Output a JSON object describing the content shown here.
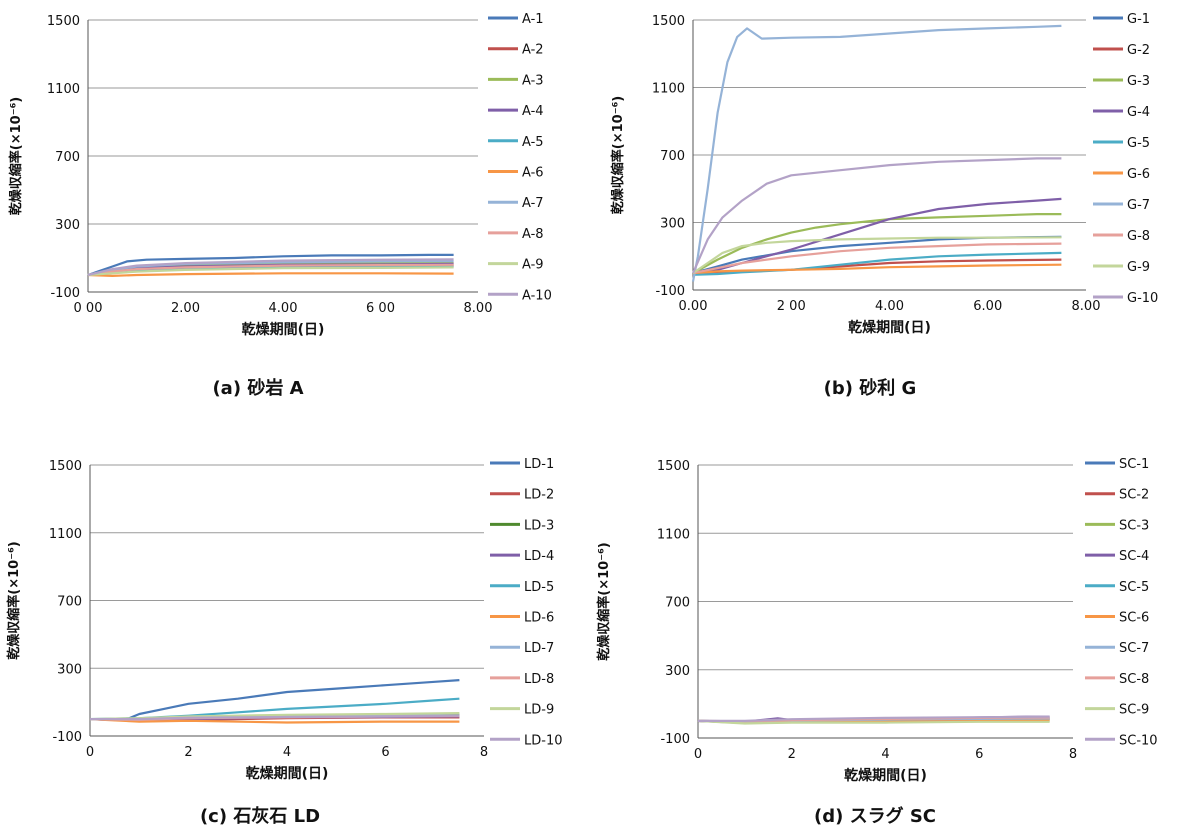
{
  "chart_data": [
    {
      "type": "line",
      "caption": "(a) 砂岩 A",
      "xlabel": "乾燥期間(日)",
      "ylabel": "乾燥収縮率(×10⁻⁶)",
      "xlim": [
        0,
        8
      ],
      "ylim": [
        -100,
        1500
      ],
      "xticks": [
        0,
        2,
        4,
        6,
        8
      ],
      "xtick_labels": [
        "0 00",
        "2.00",
        "4.00",
        "6 00",
        "8.00"
      ],
      "yticks": [
        -100,
        300,
        700,
        1100,
        1500
      ],
      "grid": "horizontal",
      "legend": "right",
      "series": [
        {
          "name": "A-1",
          "color": "#4a7ab8",
          "x": [
            0,
            0.2,
            0.5,
            0.8,
            1.2,
            2,
            3,
            4,
            5,
            6,
            7,
            7.5
          ],
          "y": [
            0,
            20,
            50,
            80,
            90,
            95,
            100,
            110,
            115,
            115,
            118,
            118
          ]
        },
        {
          "name": "A-2",
          "color": "#c0504d",
          "x": [
            0,
            0.5,
            1,
            2,
            4,
            6,
            7.5
          ],
          "y": [
            0,
            20,
            35,
            45,
            50,
            55,
            55
          ]
        },
        {
          "name": "A-3",
          "color": "#9bbb59",
          "x": [
            0,
            0.5,
            1,
            2,
            4,
            6,
            7.5
          ],
          "y": [
            0,
            30,
            45,
            55,
            65,
            70,
            72
          ]
        },
        {
          "name": "A-4",
          "color": "#7f5fa8",
          "x": [
            0,
            0.5,
            1,
            2,
            4,
            6,
            7.5
          ],
          "y": [
            0,
            25,
            40,
            50,
            60,
            62,
            65
          ]
        },
        {
          "name": "A-5",
          "color": "#4bacc6",
          "x": [
            0,
            0.5,
            1,
            2,
            4,
            6,
            7.5
          ],
          "y": [
            0,
            15,
            25,
            35,
            45,
            48,
            50
          ]
        },
        {
          "name": "A-6",
          "color": "#f79646",
          "x": [
            0,
            0.5,
            1,
            2,
            4,
            6,
            7.5
          ],
          "y": [
            0,
            -5,
            0,
            5,
            10,
            10,
            8
          ]
        },
        {
          "name": "A-7",
          "color": "#95b3d7",
          "x": [
            0,
            0.5,
            1,
            2,
            4,
            6,
            7.5
          ],
          "y": [
            0,
            30,
            50,
            65,
            75,
            80,
            82
          ]
        },
        {
          "name": "A-8",
          "color": "#e6a09b",
          "x": [
            0,
            0.5,
            1,
            2,
            4,
            6,
            7.5
          ],
          "y": [
            0,
            20,
            35,
            45,
            55,
            58,
            60
          ]
        },
        {
          "name": "A-9",
          "color": "#c3d69b",
          "x": [
            0,
            0.5,
            1,
            2,
            4,
            6,
            7.5
          ],
          "y": [
            0,
            10,
            20,
            30,
            40,
            42,
            45
          ]
        },
        {
          "name": "A-10",
          "color": "#b3a2c7",
          "x": [
            0,
            0.5,
            1,
            2,
            4,
            6,
            7.5
          ],
          "y": [
            0,
            35,
            55,
            70,
            85,
            90,
            92
          ]
        }
      ]
    },
    {
      "type": "line",
      "caption": "(b) 砂利 G",
      "xlabel": "乾燥期間(日)",
      "ylabel": "乾燥収縮率(×10⁻⁶)",
      "xlim": [
        0,
        8
      ],
      "ylim": [
        -100,
        1500
      ],
      "xticks": [
        0,
        2,
        4,
        6,
        8
      ],
      "xtick_labels": [
        "0.00",
        "2 00",
        "4.00",
        "6.00",
        "8.00"
      ],
      "yticks": [
        -100,
        300,
        700,
        1100,
        1500
      ],
      "grid": "horizontal",
      "legend": "right",
      "series": [
        {
          "name": "G-1",
          "color": "#4a7ab8",
          "x": [
            0,
            0.5,
            1,
            2,
            3,
            4,
            5,
            6,
            7.5
          ],
          "y": [
            0,
            40,
            80,
            130,
            160,
            180,
            200,
            210,
            215
          ]
        },
        {
          "name": "G-2",
          "color": "#c0504d",
          "x": [
            0,
            0.5,
            1,
            2,
            3,
            4,
            5,
            6,
            7.5
          ],
          "y": [
            0,
            5,
            10,
            20,
            40,
            60,
            70,
            75,
            80
          ]
        },
        {
          "name": "G-3",
          "color": "#9bbb59",
          "x": [
            0,
            0.5,
            1,
            1.5,
            2,
            2.5,
            3,
            4,
            5,
            6,
            7,
            7.5
          ],
          "y": [
            0,
            80,
            150,
            200,
            240,
            270,
            290,
            320,
            330,
            340,
            350,
            350
          ]
        },
        {
          "name": "G-4",
          "color": "#7f5fa8",
          "x": [
            0,
            0.5,
            1,
            2,
            3,
            4,
            5,
            6,
            7,
            7.5
          ],
          "y": [
            0,
            20,
            60,
            140,
            230,
            320,
            380,
            410,
            430,
            440
          ]
        },
        {
          "name": "G-5",
          "color": "#4bacc6",
          "x": [
            0,
            0.5,
            1,
            2,
            3,
            4,
            5,
            6,
            7.5
          ],
          "y": [
            -10,
            -5,
            5,
            20,
            50,
            80,
            100,
            110,
            120
          ]
        },
        {
          "name": "G-6",
          "color": "#f79646",
          "x": [
            0,
            0.5,
            1,
            2,
            3,
            4,
            5,
            6,
            7.5
          ],
          "y": [
            0,
            10,
            15,
            20,
            25,
            35,
            40,
            45,
            50
          ]
        },
        {
          "name": "G-7",
          "color": "#95b3d7",
          "x": [
            0,
            0.1,
            0.3,
            0.5,
            0.7,
            0.9,
            1.1,
            1.4,
            2,
            3,
            4,
            5,
            6,
            7,
            7.5
          ],
          "y": [
            -50,
            100,
            500,
            950,
            1250,
            1400,
            1450,
            1390,
            1395,
            1400,
            1420,
            1440,
            1450,
            1460,
            1465
          ]
        },
        {
          "name": "G-8",
          "color": "#e6a09b",
          "x": [
            0,
            0.5,
            1,
            2,
            3,
            4,
            5,
            6,
            7.5
          ],
          "y": [
            0,
            30,
            60,
            100,
            130,
            150,
            160,
            170,
            175
          ]
        },
        {
          "name": "G-9",
          "color": "#c3d69b",
          "x": [
            0,
            0.3,
            0.6,
            1,
            1.5,
            2,
            3,
            4,
            5,
            6,
            7.5
          ],
          "y": [
            0,
            60,
            120,
            160,
            180,
            190,
            200,
            205,
            210,
            210,
            212
          ]
        },
        {
          "name": "G-10",
          "color": "#b3a2c7",
          "x": [
            0,
            0.3,
            0.6,
            1,
            1.5,
            2,
            3,
            4,
            5,
            6,
            7,
            7.5
          ],
          "y": [
            0,
            200,
            330,
            430,
            530,
            580,
            610,
            640,
            660,
            670,
            680,
            680
          ]
        }
      ]
    },
    {
      "type": "line",
      "caption": "(c) 石灰石 LD",
      "xlabel": "乾燥期間(日)",
      "ylabel": "乾燥収縮率(×10⁻⁶)",
      "xlim": [
        0,
        8
      ],
      "ylim": [
        -100,
        1500
      ],
      "xticks": [
        0,
        2,
        4,
        6,
        8
      ],
      "xtick_labels": [
        "0",
        "2",
        "4",
        "6",
        "8"
      ],
      "yticks": [
        -100,
        300,
        700,
        1100,
        1500
      ],
      "grid": "horizontal",
      "legend": "right",
      "series": [
        {
          "name": "LD-1",
          "color": "#4a7ab8",
          "x": [
            0,
            0.5,
            0.8,
            1,
            1.5,
            2,
            3,
            4,
            5,
            6,
            7,
            7.5
          ],
          "y": [
            0,
            -5,
            5,
            30,
            60,
            90,
            120,
            160,
            180,
            200,
            220,
            230
          ]
        },
        {
          "name": "LD-2",
          "color": "#c0504d",
          "x": [
            0,
            1,
            2,
            4,
            6,
            7.5
          ],
          "y": [
            0,
            -10,
            -5,
            5,
            10,
            10
          ]
        },
        {
          "name": "LD-3",
          "color": "#4f8a2e",
          "x": [
            0,
            1,
            2,
            4,
            6,
            7.5
          ],
          "y": [
            0,
            -5,
            5,
            15,
            20,
            25
          ]
        },
        {
          "name": "LD-4",
          "color": "#7f5fa8",
          "x": [
            0,
            1,
            2,
            4,
            6,
            7.5
          ],
          "y": [
            0,
            -10,
            0,
            10,
            12,
            15
          ]
        },
        {
          "name": "LD-5",
          "color": "#4bacc6",
          "x": [
            0,
            1,
            2,
            3,
            4,
            5,
            6,
            7,
            7.5
          ],
          "y": [
            0,
            5,
            20,
            40,
            60,
            75,
            90,
            110,
            120
          ]
        },
        {
          "name": "LD-6",
          "color": "#f79646",
          "x": [
            0,
            1,
            2,
            4,
            6,
            7.5
          ],
          "y": [
            0,
            -15,
            -10,
            -20,
            -15,
            -15
          ]
        },
        {
          "name": "LD-7",
          "color": "#95b3d7",
          "x": [
            0,
            1,
            2,
            4,
            6,
            7.5
          ],
          "y": [
            0,
            0,
            10,
            15,
            20,
            22
          ]
        },
        {
          "name": "LD-8",
          "color": "#e6a09b",
          "x": [
            0,
            1,
            2,
            4,
            6,
            7.5
          ],
          "y": [
            0,
            -5,
            5,
            10,
            15,
            18
          ]
        },
        {
          "name": "LD-9",
          "color": "#c3d69b",
          "x": [
            0,
            1,
            2,
            4,
            6,
            7.5
          ],
          "y": [
            0,
            5,
            15,
            25,
            30,
            35
          ]
        },
        {
          "name": "LD-10",
          "color": "#b3a2c7",
          "x": [
            0,
            1,
            2,
            4,
            6,
            7.5
          ],
          "y": [
            0,
            0,
            8,
            12,
            16,
            20
          ]
        }
      ]
    },
    {
      "type": "line",
      "caption": "(d) スラグ SC",
      "xlabel": "乾燥期間(日)",
      "ylabel": "乾燥収縮率(×10⁻⁶)",
      "xlim": [
        0,
        8
      ],
      "ylim": [
        -100,
        1500
      ],
      "xticks": [
        0,
        2,
        4,
        6,
        8
      ],
      "xtick_labels": [
        "0",
        "2",
        "4",
        "6",
        "8"
      ],
      "yticks": [
        -100,
        300,
        700,
        1100,
        1500
      ],
      "grid": "horizontal",
      "legend": "right",
      "series": [
        {
          "name": "SC-1",
          "color": "#4a7ab8",
          "x": [
            0,
            1,
            2,
            4,
            6,
            7.5
          ],
          "y": [
            0,
            -5,
            5,
            10,
            15,
            15
          ]
        },
        {
          "name": "SC-2",
          "color": "#c0504d",
          "x": [
            0,
            1,
            2,
            4,
            6,
            7.5
          ],
          "y": [
            0,
            -8,
            0,
            5,
            10,
            12
          ]
        },
        {
          "name": "SC-3",
          "color": "#9bbb59",
          "x": [
            0,
            1,
            2,
            4,
            6,
            7.5
          ],
          "y": [
            0,
            -10,
            -5,
            -5,
            0,
            0
          ]
        },
        {
          "name": "SC-4",
          "color": "#7f5fa8",
          "x": [
            0,
            0.8,
            1.7,
            2,
            3,
            4,
            5,
            6,
            7,
            7.5
          ],
          "y": [
            0,
            -10,
            15,
            5,
            10,
            15,
            15,
            20,
            25,
            25
          ]
        },
        {
          "name": "SC-5",
          "color": "#4bacc6",
          "x": [
            0,
            1,
            2,
            4,
            6,
            7.5
          ],
          "y": [
            0,
            -5,
            0,
            5,
            8,
            10
          ]
        },
        {
          "name": "SC-6",
          "color": "#f79646",
          "x": [
            0,
            1,
            2,
            4,
            6,
            7.5
          ],
          "y": [
            0,
            -5,
            -3,
            0,
            5,
            5
          ]
        },
        {
          "name": "SC-7",
          "color": "#95b3d7",
          "x": [
            0,
            1,
            2,
            4,
            6,
            7.5
          ],
          "y": [
            0,
            -3,
            3,
            8,
            12,
            14
          ]
        },
        {
          "name": "SC-8",
          "color": "#e6a09b",
          "x": [
            0,
            1,
            2,
            4,
            6,
            7.5
          ],
          "y": [
            0,
            -2,
            5,
            12,
            18,
            20
          ]
        },
        {
          "name": "SC-9",
          "color": "#c3d69b",
          "x": [
            0,
            1,
            2,
            4,
            6,
            7.5
          ],
          "y": [
            0,
            -15,
            -10,
            -10,
            -5,
            -5
          ]
        },
        {
          "name": "SC-10",
          "color": "#b3a2c7",
          "x": [
            0,
            1,
            2,
            4,
            6,
            7.5
          ],
          "y": [
            0,
            0,
            10,
            18,
            22,
            25
          ]
        }
      ]
    }
  ]
}
